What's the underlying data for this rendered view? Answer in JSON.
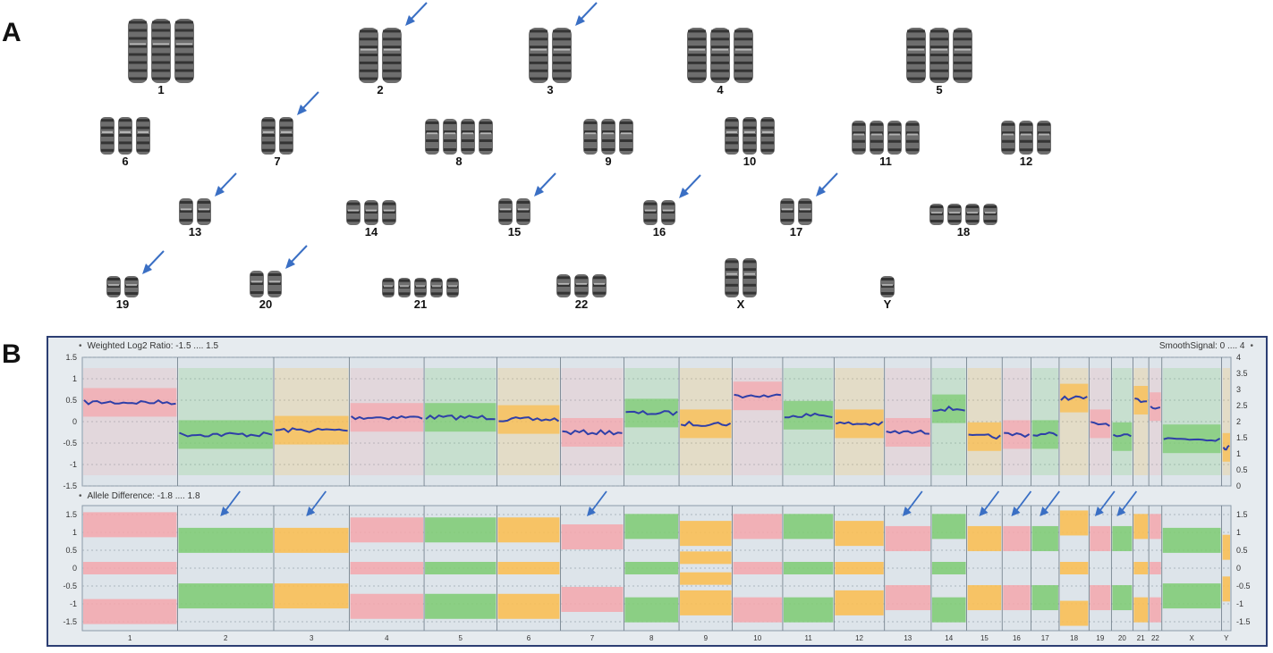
{
  "panel_a": {
    "letter": "A",
    "rows": [
      [
        {
          "label": "1",
          "n": 3,
          "arrow": false
        },
        {
          "label": "2",
          "n": 2,
          "arrow": true
        },
        {
          "label": "3",
          "n": 2,
          "arrow": true
        },
        {
          "label": "4",
          "n": 3,
          "arrow": false
        },
        {
          "label": "5",
          "n": 3,
          "arrow": false
        }
      ],
      [
        {
          "label": "6",
          "n": 3,
          "arrow": false
        },
        {
          "label": "7",
          "n": 2,
          "arrow": true
        },
        {
          "label": "8",
          "n": 4,
          "arrow": false
        },
        {
          "label": "9",
          "n": 3,
          "arrow": false
        },
        {
          "label": "10",
          "n": 3,
          "arrow": false
        },
        {
          "label": "11",
          "n": 4,
          "arrow": false
        },
        {
          "label": "12",
          "n": 3,
          "arrow": false
        }
      ],
      [
        {
          "label": "13",
          "n": 2,
          "arrow": true
        },
        {
          "label": "14",
          "n": 3,
          "arrow": false
        },
        {
          "label": "15",
          "n": 2,
          "arrow": true
        },
        {
          "label": "16",
          "n": 2,
          "arrow": true
        },
        {
          "label": "17",
          "n": 2,
          "arrow": true
        },
        {
          "label": "18",
          "n": 4,
          "arrow": false
        }
      ],
      [
        {
          "label": "19",
          "n": 2,
          "arrow": true
        },
        {
          "label": "20",
          "n": 2,
          "arrow": true
        },
        {
          "label": "21",
          "n": 5,
          "arrow": false
        },
        {
          "label": "22",
          "n": 3,
          "arrow": false
        },
        {
          "label": "X",
          "n": 2,
          "arrow": false
        },
        {
          "label": "Y",
          "n": 1,
          "arrow": false
        }
      ]
    ]
  },
  "panel_b": {
    "letter": "B",
    "top_header_left": "Weighted Log2 Ratio: -1.5 .... 1.5",
    "top_header_right": "SmoothSignal: 0 .... 4",
    "bottom_header_left": "Allele Difference: -1.8 .... 1.8",
    "left_ticks_top": [
      "1.5",
      "1",
      "0.5",
      "0",
      "-0.5",
      "-1",
      "-1.5"
    ],
    "right_ticks_top": [
      "4",
      "3.5",
      "3",
      "2.5",
      "2",
      "1.5",
      "1",
      "0.5",
      "0"
    ],
    "left_ticks_bottom": [
      "1.5",
      "1",
      "0.5",
      "0",
      "-0.5",
      "-1",
      "-1.5"
    ],
    "right_ticks_bottom": [
      "1.5",
      "1",
      "0.5",
      "0",
      "-0.5",
      "-1",
      "-1.5"
    ],
    "colors": {
      "pink": "#f4a7ad",
      "green": "#7ccb72",
      "orange": "#fbbd4d",
      "blue": "#2f3fa8",
      "arrow": "#3a6fc4"
    }
  },
  "chart_data": {
    "type": "genome-plot",
    "chromosomes": [
      {
        "label": "1",
        "color": "pink",
        "log2": 0.45,
        "ad": [
          1.25,
          0,
          -1.25
        ],
        "arrow": false
      },
      {
        "label": "2",
        "color": "green",
        "log2": -0.3,
        "ad": [
          0.8,
          -0.8
        ],
        "arrow": true
      },
      {
        "label": "3",
        "color": "orange",
        "log2": -0.2,
        "ad": [
          0.8,
          -0.8
        ],
        "arrow": true
      },
      {
        "label": "4",
        "color": "pink",
        "log2": 0.1,
        "ad": [
          1.1,
          0,
          -1.1
        ],
        "arrow": false
      },
      {
        "label": "5",
        "color": "green",
        "log2": 0.1,
        "ad": [
          1.1,
          0,
          -1.1
        ],
        "arrow": false
      },
      {
        "label": "6",
        "color": "orange",
        "log2": 0.05,
        "ad": [
          1.1,
          0,
          -1.1
        ],
        "arrow": false
      },
      {
        "label": "7",
        "color": "pink",
        "log2": -0.25,
        "ad": [
          0.9,
          -0.9
        ],
        "arrow": true
      },
      {
        "label": "8",
        "color": "green",
        "log2": 0.2,
        "ad": [
          1.2,
          0,
          -1.2
        ],
        "arrow": false
      },
      {
        "label": "9",
        "color": "orange",
        "log2": -0.05,
        "ad": [
          1.0,
          0.3,
          -0.3,
          -1.0
        ],
        "arrow": false
      },
      {
        "label": "10",
        "color": "pink",
        "log2": 0.6,
        "ad": [
          1.2,
          0,
          -1.2
        ],
        "arrow": false
      },
      {
        "label": "11",
        "color": "green",
        "log2": 0.15,
        "ad": [
          1.2,
          0,
          -1.2
        ],
        "arrow": false
      },
      {
        "label": "12",
        "color": "orange",
        "log2": -0.05,
        "ad": [
          1.0,
          0,
          -1.0
        ],
        "arrow": false
      },
      {
        "label": "13",
        "color": "pink",
        "log2": -0.25,
        "ad": [
          0.85,
          -0.85
        ],
        "arrow": true
      },
      {
        "label": "14",
        "color": "green",
        "log2": 0.3,
        "ad": [
          1.2,
          0,
          -1.2
        ],
        "arrow": false
      },
      {
        "label": "15",
        "color": "orange",
        "log2": -0.35,
        "ad": [
          0.85,
          -0.85
        ],
        "arrow": true
      },
      {
        "label": "16",
        "color": "pink",
        "log2": -0.3,
        "ad": [
          0.85,
          -0.85
        ],
        "arrow": true
      },
      {
        "label": "17",
        "color": "green",
        "log2": -0.3,
        "ad": [
          0.85,
          -0.85
        ],
        "arrow": true
      },
      {
        "label": "18",
        "color": "orange",
        "log2": 0.55,
        "ad": [
          1.3,
          0,
          -1.3
        ],
        "arrow": false
      },
      {
        "label": "19",
        "color": "pink",
        "log2": -0.05,
        "ad": [
          0.85,
          -0.85
        ],
        "arrow": true
      },
      {
        "label": "20",
        "color": "green",
        "log2": -0.35,
        "ad": [
          0.85,
          -0.85
        ],
        "arrow": true
      },
      {
        "label": "21",
        "color": "orange",
        "log2": 0.5,
        "ad": [
          1.2,
          0,
          -1.2
        ],
        "arrow": false
      },
      {
        "label": "22",
        "color": "pink",
        "log2": 0.35,
        "ad": [
          1.2,
          0,
          -1.2
        ],
        "arrow": false
      },
      {
        "label": "X",
        "color": "green",
        "log2": -0.4,
        "ad": [
          0.8,
          -0.8
        ],
        "arrow": false
      },
      {
        "label": "Y",
        "color": "orange",
        "log2": -0.6,
        "ad": [
          0.6,
          -0.6
        ],
        "arrow": false
      }
    ]
  }
}
